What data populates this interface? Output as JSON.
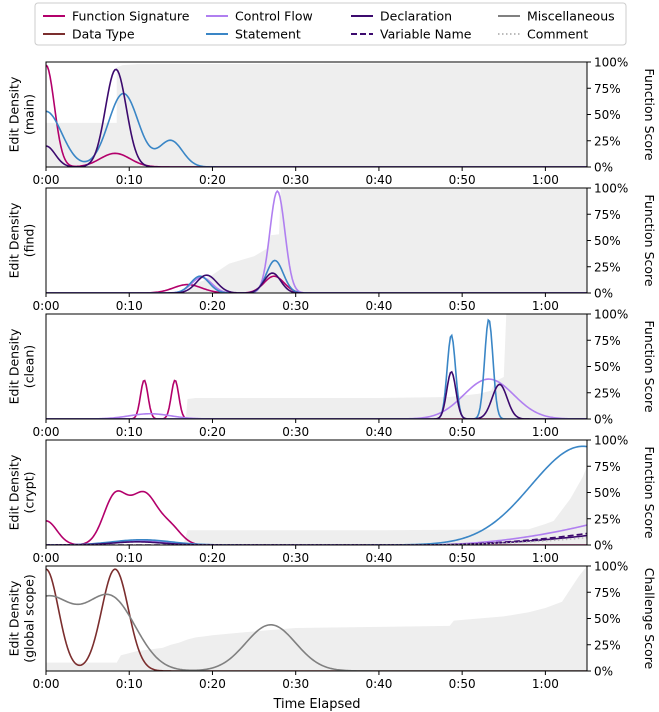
{
  "figure": {
    "xlabel": "Time Elapsed",
    "legend": [
      {
        "name": "Function Signature",
        "color": "#b3006b",
        "style": "solid"
      },
      {
        "name": "Data Type",
        "color": "#7b2e2e",
        "style": "solid"
      },
      {
        "name": "Control Flow",
        "color": "#b07ff0",
        "style": "solid"
      },
      {
        "name": "Statement",
        "color": "#3a86c6",
        "style": "solid"
      },
      {
        "name": "Declaration",
        "color": "#3c0a6e",
        "style": "solid"
      },
      {
        "name": "Variable Name",
        "color": "#3c0a6e",
        "style": "dashed"
      },
      {
        "name": "Miscellaneous",
        "color": "#808080",
        "style": "solid"
      },
      {
        "name": "Comment",
        "color": "#bbbbbb",
        "style": "dotted"
      }
    ],
    "legend_placement": "top-center",
    "score_fill_color": "#eeeeee"
  },
  "chart_data": [
    {
      "type": "line",
      "ylabel": "Edit Density\n(main)",
      "y2label": "Function Score",
      "xlim": [
        0,
        65
      ],
      "xticks": [
        "0:00",
        "0:10",
        "0:20",
        "0:30",
        "0:40",
        "0:50",
        "1:00"
      ],
      "y2ticks": [
        "0%",
        "25%",
        "50%",
        "75%",
        "100%"
      ],
      "score_area": [
        [
          0,
          0.42
        ],
        [
          8.5,
          0.42
        ],
        [
          8.5,
          0.95
        ],
        [
          9.2,
          0.97
        ],
        [
          11,
          0.98
        ],
        [
          65,
          0.99
        ]
      ],
      "series": [
        {
          "name": "Function Signature",
          "peaks": [
            [
              0,
              0.97,
              1.0
            ],
            [
              8.3,
              0.13,
              1.8
            ]
          ]
        },
        {
          "name": "Statement",
          "peaks": [
            [
              0,
              0.53,
              1.9
            ],
            [
              9.3,
              0.7,
              1.8
            ],
            [
              15.0,
              0.25,
              1.4
            ]
          ]
        },
        {
          "name": "Declaration",
          "peaks": [
            [
              0,
              0.2,
              1.1
            ],
            [
              8.4,
              0.93,
              1.25
            ]
          ]
        }
      ]
    },
    {
      "type": "line",
      "ylabel": "Edit Density\n(find)",
      "y2label": "Function Score",
      "xlim": [
        0,
        65
      ],
      "xticks": [
        "0:00",
        "0:10",
        "0:20",
        "0:30",
        "0:40",
        "0:50",
        "1:00"
      ],
      "y2ticks": [
        "0%",
        "25%",
        "50%",
        "75%",
        "100%"
      ],
      "score_area": [
        [
          0,
          0
        ],
        [
          17,
          0
        ],
        [
          17.5,
          0.08
        ],
        [
          19,
          0.12
        ],
        [
          22,
          0.28
        ],
        [
          25,
          0.35
        ],
        [
          26.5,
          0.42
        ],
        [
          27,
          0.55
        ],
        [
          28,
          0.56
        ],
        [
          28.2,
          1.0
        ],
        [
          65,
          1.0
        ]
      ],
      "series": [
        {
          "name": "Function Signature",
          "peaks": [
            [
              17.0,
              0.08,
              1.7
            ],
            [
              27.4,
              0.16,
              1.2
            ]
          ]
        },
        {
          "name": "Control Flow",
          "peaks": [
            [
              18.7,
              0.15,
              1.2
            ],
            [
              27.8,
              0.97,
              0.9
            ]
          ]
        },
        {
          "name": "Statement",
          "peaks": [
            [
              18.5,
              0.16,
              1.1
            ],
            [
              27.5,
              0.31,
              1.0
            ]
          ]
        },
        {
          "name": "Declaration",
          "peaks": [
            [
              19.3,
              0.17,
              1.2
            ],
            [
              27.2,
              0.19,
              1.0
            ]
          ]
        }
      ]
    },
    {
      "type": "line",
      "ylabel": "Edit Density\n(clean)",
      "y2label": "Function Score",
      "xlim": [
        0,
        65
      ],
      "xticks": [
        "0:00",
        "0:10",
        "0:20",
        "0:30",
        "0:40",
        "0:50",
        "1:00"
      ],
      "y2ticks": [
        "0%",
        "25%",
        "50%",
        "75%",
        "100%"
      ],
      "score_area": [
        [
          0,
          0
        ],
        [
          16.8,
          0
        ],
        [
          17,
          0.19
        ],
        [
          18,
          0.2
        ],
        [
          40,
          0.2
        ],
        [
          48.5,
          0.21
        ],
        [
          52,
          0.24
        ],
        [
          53.5,
          0.27
        ],
        [
          54,
          0.36
        ],
        [
          55,
          0.4
        ],
        [
          55.3,
          1.0
        ],
        [
          65,
          1.0
        ]
      ],
      "series": [
        {
          "name": "Function Signature",
          "peaks": [
            [
              11.8,
              0.37,
              0.45
            ],
            [
              15.5,
              0.37,
              0.45
            ]
          ]
        },
        {
          "name": "Control Flow",
          "peaks": [
            [
              12.5,
              0.05,
              2.5
            ],
            [
              53.2,
              0.38,
              3.0
            ]
          ]
        },
        {
          "name": "Statement",
          "peaks": [
            [
              48.7,
              0.8,
              0.5
            ],
            [
              53.2,
              0.95,
              0.5
            ]
          ]
        },
        {
          "name": "Declaration",
          "peaks": [
            [
              48.7,
              0.45,
              0.55
            ],
            [
              54.5,
              0.33,
              0.9
            ]
          ]
        }
      ]
    },
    {
      "type": "line",
      "ylabel": "Edit Density\n(crypt)",
      "y2label": "Function Score",
      "xlim": [
        0,
        65
      ],
      "xticks": [
        "0:00",
        "0:10",
        "0:20",
        "0:30",
        "0:40",
        "0:50",
        "1:00"
      ],
      "y2ticks": [
        "0%",
        "25%",
        "50%",
        "75%",
        "100%"
      ],
      "score_area": [
        [
          0,
          0
        ],
        [
          16.5,
          0
        ],
        [
          17,
          0.14
        ],
        [
          40,
          0.14
        ],
        [
          58,
          0.15
        ],
        [
          60,
          0.2
        ],
        [
          61,
          0.23
        ],
        [
          63,
          0.44
        ],
        [
          64.5,
          0.65
        ],
        [
          65,
          0.75
        ]
      ],
      "series": [
        {
          "name": "Function Signature",
          "peaks": [
            [
              0,
              0.23,
              1.3
            ],
            [
              8.3,
              0.46,
              1.4
            ],
            [
              11.8,
              0.48,
              1.6
            ],
            [
              15.0,
              0.15,
              1.3
            ]
          ]
        },
        {
          "name": "Control Flow",
          "peaks": [
            [
              11.5,
              0.04,
              3.5
            ]
          ],
          "ramp": [
            45,
            65,
            0.19,
            2.0
          ]
        },
        {
          "name": "Statement",
          "peaks": [
            [
              11.5,
              0.05,
              3.5
            ],
            [
              64.5,
              0.94,
              6.2
            ]
          ]
        },
        {
          "name": "Declaration",
          "peaks": [
            [
              11.0,
              0.03,
              3.0
            ]
          ],
          "ramp": [
            45,
            65,
            0.09,
            2.0
          ]
        },
        {
          "name": "Variable Name",
          "ramp": [
            45,
            65,
            0.11,
            2.0
          ]
        },
        {
          "name": "Comment",
          "ramp": [
            45,
            65,
            0.07,
            2.0
          ]
        }
      ]
    },
    {
      "type": "line",
      "ylabel": "Edit Density\n(global scope)",
      "y2label": "Challenge Score",
      "xlim": [
        0,
        65
      ],
      "xticks": [
        "0:00",
        "0:10",
        "0:20",
        "0:30",
        "0:40",
        "0:50",
        "1:00"
      ],
      "y2ticks": [
        "0%",
        "25%",
        "50%",
        "75%",
        "100%"
      ],
      "score_area": [
        [
          0,
          0.08
        ],
        [
          8.5,
          0.08
        ],
        [
          9,
          0.15
        ],
        [
          10,
          0.17
        ],
        [
          11,
          0.19
        ],
        [
          14,
          0.22
        ],
        [
          15,
          0.25
        ],
        [
          16,
          0.27
        ],
        [
          17,
          0.3
        ],
        [
          18,
          0.32
        ],
        [
          19,
          0.33
        ],
        [
          20,
          0.34
        ],
        [
          24,
          0.37
        ],
        [
          27,
          0.39
        ],
        [
          30,
          0.41
        ],
        [
          40,
          0.42
        ],
        [
          48.5,
          0.43
        ],
        [
          49,
          0.48
        ],
        [
          52,
          0.5
        ],
        [
          55,
          0.52
        ],
        [
          58,
          0.56
        ],
        [
          60,
          0.6
        ],
        [
          62,
          0.66
        ],
        [
          64,
          0.9
        ],
        [
          65,
          1.0
        ]
      ],
      "series": [
        {
          "name": "Data Type",
          "peaks": [
            [
              0,
              0.97,
              1.5
            ],
            [
              8.3,
              0.97,
              1.6
            ]
          ]
        },
        {
          "name": "Miscellaneous",
          "peaks": [
            [
              0,
              0.69,
              3.3
            ],
            [
              7.8,
              0.68,
              3.0
            ],
            [
              27.0,
              0.44,
              3.0
            ]
          ]
        }
      ]
    }
  ]
}
